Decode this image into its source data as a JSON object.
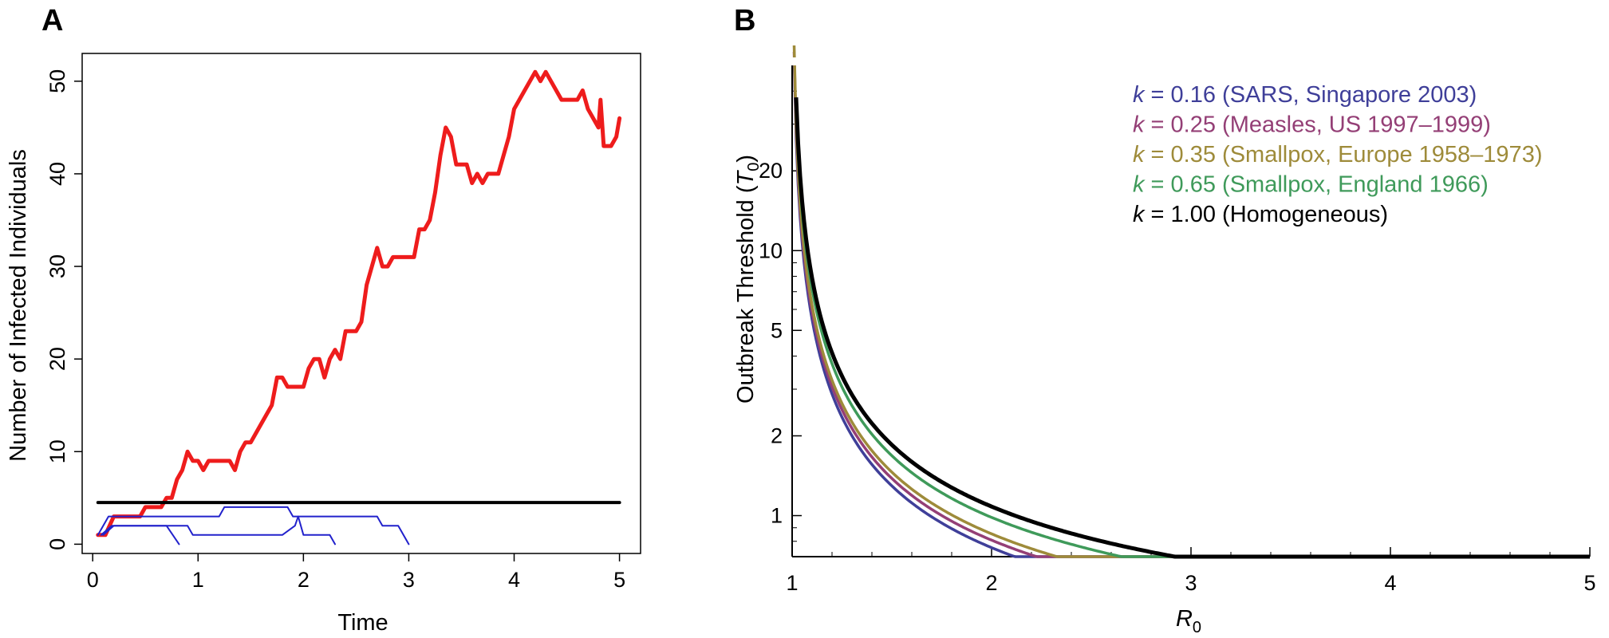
{
  "panels": {
    "a": {
      "letter": "A"
    },
    "b": {
      "letter": "B"
    }
  },
  "chart_data": [
    {
      "type": "line",
      "panel": "A",
      "title": "",
      "xlabel": "Time",
      "ylabel": "Number of Infected Individuals",
      "xlim": [
        -0.1,
        5.2
      ],
      "ylim": [
        -1,
        53
      ],
      "xticks": [
        0,
        1,
        2,
        3,
        4,
        5
      ],
      "yticks": [
        0,
        10,
        20,
        30,
        40,
        50
      ],
      "grid": false,
      "series": [
        {
          "color": "#ee1c1c",
          "points": [
            [
              0.05,
              1
            ],
            [
              0.12,
              1
            ],
            [
              0.2,
              3
            ],
            [
              0.35,
              3
            ],
            [
              0.45,
              3
            ],
            [
              0.5,
              4
            ],
            [
              0.65,
              4
            ],
            [
              0.7,
              5
            ],
            [
              0.75,
              5
            ],
            [
              0.8,
              7
            ],
            [
              0.85,
              8
            ],
            [
              0.9,
              10
            ],
            [
              0.95,
              9
            ],
            [
              1.0,
              9
            ],
            [
              1.05,
              8
            ],
            [
              1.1,
              9
            ],
            [
              1.3,
              9
            ],
            [
              1.35,
              8
            ],
            [
              1.4,
              10
            ],
            [
              1.45,
              11
            ],
            [
              1.5,
              11
            ],
            [
              1.6,
              13
            ],
            [
              1.7,
              15
            ],
            [
              1.75,
              18
            ],
            [
              1.8,
              18
            ],
            [
              1.85,
              17
            ],
            [
              2.0,
              17
            ],
            [
              2.05,
              19
            ],
            [
              2.1,
              20
            ],
            [
              2.15,
              20
            ],
            [
              2.2,
              18
            ],
            [
              2.25,
              20
            ],
            [
              2.3,
              21
            ],
            [
              2.35,
              20
            ],
            [
              2.4,
              23
            ],
            [
              2.5,
              23
            ],
            [
              2.55,
              24
            ],
            [
              2.6,
              28
            ],
            [
              2.65,
              30
            ],
            [
              2.7,
              32
            ],
            [
              2.75,
              30
            ],
            [
              2.8,
              30
            ],
            [
              2.85,
              31
            ],
            [
              3.05,
              31
            ],
            [
              3.1,
              34
            ],
            [
              3.15,
              34
            ],
            [
              3.2,
              35
            ],
            [
              3.25,
              38
            ],
            [
              3.3,
              42
            ],
            [
              3.35,
              45
            ],
            [
              3.4,
              44
            ],
            [
              3.45,
              41
            ],
            [
              3.55,
              41
            ],
            [
              3.6,
              39
            ],
            [
              3.65,
              40
            ],
            [
              3.7,
              39
            ],
            [
              3.75,
              40
            ],
            [
              3.85,
              40
            ],
            [
              3.9,
              42
            ],
            [
              3.95,
              44
            ],
            [
              4.0,
              47
            ],
            [
              4.1,
              49
            ],
            [
              4.2,
              51
            ],
            [
              4.25,
              50
            ],
            [
              4.3,
              51
            ],
            [
              4.35,
              50
            ],
            [
              4.45,
              48
            ],
            [
              4.6,
              48
            ],
            [
              4.65,
              49
            ],
            [
              4.7,
              47
            ],
            [
              4.8,
              45
            ],
            [
              4.82,
              48
            ],
            [
              4.85,
              43
            ],
            [
              4.92,
              43
            ],
            [
              4.97,
              44
            ],
            [
              5.0,
              46
            ]
          ]
        },
        {
          "color": "#2222cc",
          "points": [
            [
              0.05,
              1
            ],
            [
              0.15,
              3
            ],
            [
              0.35,
              3
            ],
            [
              1.2,
              3
            ],
            [
              1.25,
              4
            ],
            [
              1.85,
              4
            ],
            [
              1.9,
              3
            ],
            [
              2.7,
              3
            ],
            [
              2.75,
              2
            ],
            [
              2.9,
              2
            ],
            [
              3.0,
              0
            ]
          ]
        },
        {
          "color": "#2222cc",
          "points": [
            [
              0.08,
              1
            ],
            [
              0.18,
              2
            ],
            [
              0.55,
              2
            ],
            [
              0.7,
              2
            ],
            [
              0.82,
              0
            ]
          ]
        },
        {
          "color": "#2222cc",
          "points": [
            [
              0.1,
              1
            ],
            [
              0.2,
              2
            ],
            [
              0.9,
              2
            ],
            [
              0.95,
              1
            ],
            [
              1.5,
              1
            ],
            [
              1.8,
              1
            ],
            [
              1.92,
              2
            ],
            [
              1.95,
              3
            ],
            [
              2.0,
              1
            ],
            [
              2.25,
              1
            ],
            [
              2.3,
              0
            ]
          ]
        },
        {
          "color": "#000000",
          "points": [
            [
              0.05,
              4.5
            ],
            [
              5.0,
              4.5
            ]
          ]
        }
      ]
    },
    {
      "type": "line",
      "panel": "B",
      "title": "",
      "xlabel": "R",
      "xlabel_sub": "0",
      "ylabel": "Outbreak Threshold (",
      "ylabel_sym": "T",
      "ylabel_sub": "0",
      "ylabel_close": ")",
      "xlim": [
        1,
        5
      ],
      "ylim": [
        0.7,
        50
      ],
      "yscale": "log",
      "xticks": [
        1,
        2,
        3,
        4,
        5
      ],
      "yticks": [
        1,
        2,
        5,
        10,
        20
      ],
      "grid": false,
      "legend_position": "top-right",
      "series": [
        {
          "k_label": "k",
          "name": " = 0.16 (SARS, Singapore 2003)",
          "k": 0.16,
          "scale": 3.28,
          "color": "#3f3f99"
        },
        {
          "k_label": "k",
          "name": " = 0.25 (Measles, US 1997–1999)",
          "k": 0.25,
          "scale": 2.24,
          "color": "#943f76"
        },
        {
          "k_label": "k",
          "name": " = 0.35 (Smallpox, Europe 1958–1973)",
          "k": 0.35,
          "scale": 1.69,
          "color": "#9e8b3a"
        },
        {
          "k_label": "k",
          "name": " = 0.65 (Smallpox, England 1966)",
          "k": 0.65,
          "scale": 1.05,
          "color": "#3f9a5a"
        },
        {
          "k_label": "k",
          "name": " = 1.00 (Homogeneous)",
          "k": 1.0,
          "scale": 0.75,
          "color": "#000000"
        }
      ]
    }
  ]
}
